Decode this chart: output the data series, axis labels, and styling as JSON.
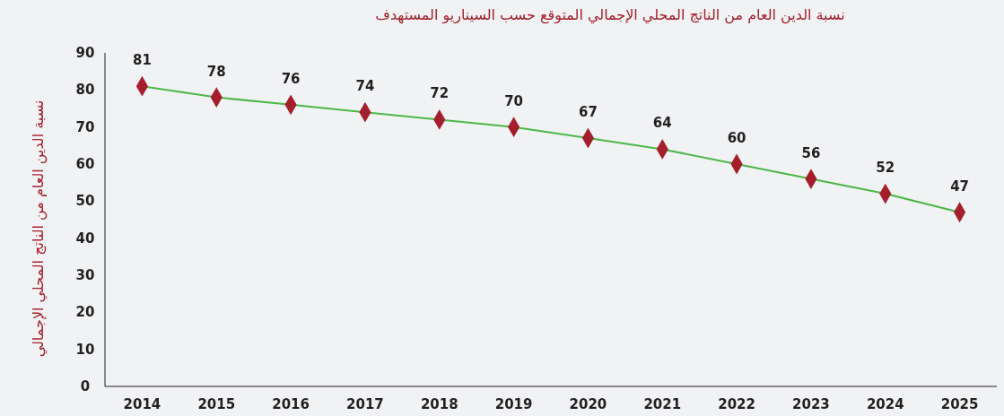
{
  "chart_data": {
    "type": "line",
    "title": "نسبة الدين العام من الناتج المحلي الإجمالي المتوقع حسب السيناريو المستهدف",
    "ylabel": "نسبة الدين العام من الناتج المحلي الإجمالي",
    "categories": [
      "2014",
      "2015",
      "2016",
      "2017",
      "2018",
      "2019",
      "2020",
      "2021",
      "2022",
      "2023",
      "2024",
      "2025"
    ],
    "series": [
      {
        "color": "#4cb848",
        "values": [
          81,
          78,
          76,
          74,
          72,
          70,
          67,
          64,
          60,
          56,
          52,
          47
        ]
      }
    ],
    "marker": "diamond",
    "data_labels": true,
    "grid": false,
    "ylim": [
      0,
      90
    ],
    "yticks": [
      0,
      10,
      20,
      30,
      40,
      50,
      60,
      70,
      80,
      90
    ]
  }
}
